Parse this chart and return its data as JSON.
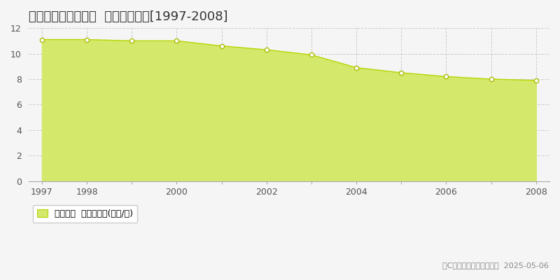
{
  "title": "不破郡関ケ原町松尾  基準地価推移[1997-2008]",
  "years": [
    1997,
    1998,
    1999,
    2000,
    2001,
    2002,
    2003,
    2004,
    2005,
    2006,
    2007,
    2008
  ],
  "values": [
    11.1,
    11.1,
    11.0,
    11.0,
    10.6,
    10.3,
    9.9,
    8.9,
    8.5,
    8.2,
    8.0,
    7.9
  ],
  "xtick_labels": [
    "1997",
    "1998",
    "",
    "2000",
    "",
    "2002",
    "",
    "2004",
    "",
    "2006",
    "",
    "2008"
  ],
  "fill_color": "#d4e96b",
  "line_color": "#b8d400",
  "marker_color": "white",
  "marker_edge_color": "#aabb00",
  "grid_color": "#cccccc",
  "background_color": "#f5f5f5",
  "plot_bg_color": "#f5f5f5",
  "ylim": [
    0,
    12
  ],
  "yticks": [
    0,
    2,
    4,
    6,
    8,
    10,
    12
  ],
  "xlabel": "",
  "ylabel": "",
  "legend_label": "基準地価  平均坪単価(万円/坪)",
  "copyright_text": "（C）土地価格ドットコム  2025-05-06",
  "title_fontsize": 13,
  "tick_fontsize": 9,
  "legend_fontsize": 9,
  "copyright_fontsize": 8
}
